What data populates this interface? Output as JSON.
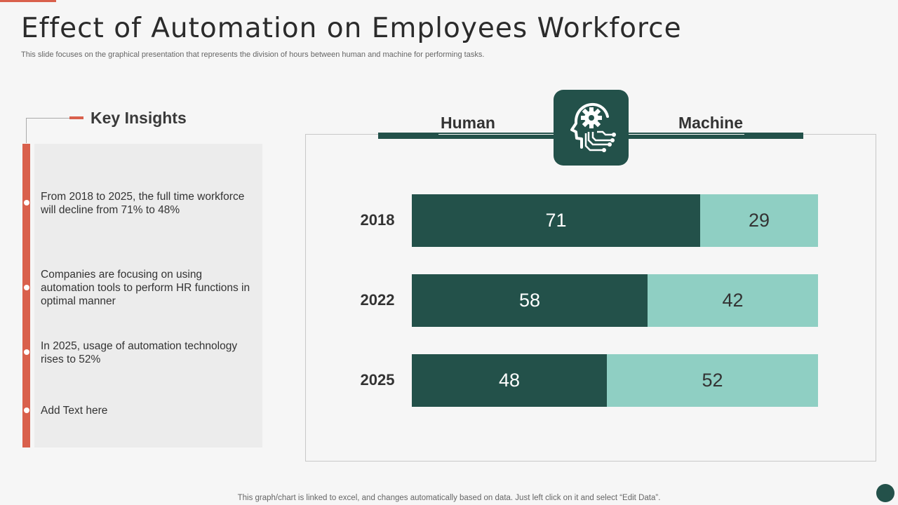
{
  "title": "Effect of Automation on Employees Workforce",
  "subtitle": "This slide focuses on the graphical presentation that represents the division of hours between human and machine for performing tasks.",
  "insights": {
    "heading": "Key Insights",
    "items": [
      "From 2018 to 2025, the full time workforce will decline from 71% to 48%",
      "Companies are focusing on using automation tools to perform HR functions in optimal manner",
      "In 2025, usage of automation technology rises to 52%",
      "Add Text here"
    ]
  },
  "chart_data": {
    "type": "bar",
    "orientation": "horizontal",
    "stacked": true,
    "categories": [
      "2018",
      "2022",
      "2025"
    ],
    "series": [
      {
        "name": "Human",
        "values": [
          71,
          58,
          48
        ],
        "color": "#23514a"
      },
      {
        "name": "Machine",
        "values": [
          29,
          42,
          52
        ],
        "color": "#8fcfc3"
      }
    ],
    "title": "",
    "xlabel": "",
    "ylabel": "",
    "xlim": [
      0,
      100
    ]
  },
  "icon": "head-gear-circuit-icon",
  "footer": "This graph/chart is linked to excel,  and changes automatically based on data. Just left click on it and select “Edit Data”.",
  "colors": {
    "accent": "#d9604c",
    "dark": "#23514a",
    "light": "#8fcfc3"
  }
}
